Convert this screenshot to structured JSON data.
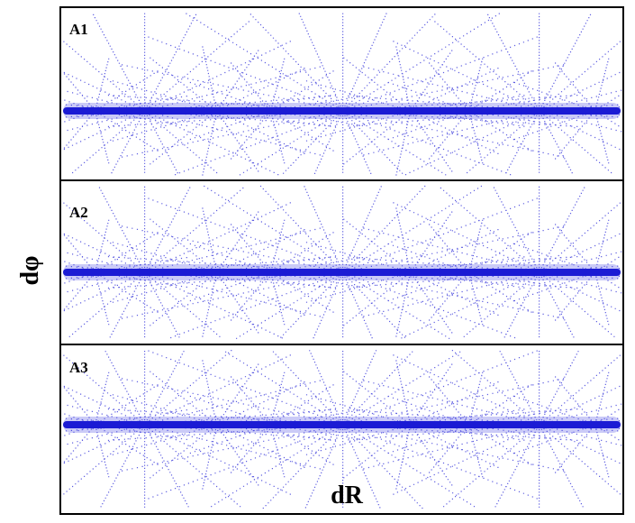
{
  "panels": [
    {
      "label": "A1"
    },
    {
      "label": "A2"
    },
    {
      "label": "A3"
    }
  ],
  "x_label": "dR",
  "y_label": "dφ"
}
